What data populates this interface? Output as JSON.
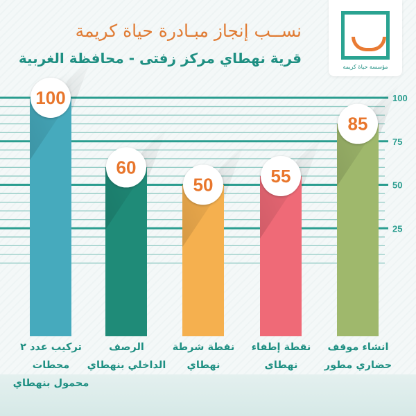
{
  "header": {
    "title": "نســب إنجاز مبـادرة حياة كريمة",
    "subtitle": "قرية نهطاي مركز زفتى - محافظة الغربية",
    "logo_text": "مؤسسة حياة كريمة"
  },
  "chart_data": {
    "type": "bar",
    "title": "نســب إنجاز مبـادرة حياة كريمة",
    "subtitle": "قرية نهطاي مركز زفتى - محافظة الغربية",
    "categories": [
      "تركيب عدد ٢ محطات محمول بنهطاي",
      "الرصف الداخلي بنهطاي",
      "نقطة شرطة نهطاي",
      "نقطة إطفاء نهطاى",
      "انشاء موقف حضاري مطور"
    ],
    "category_lines": [
      [
        "تركيب عدد ٢ محطات",
        "محمول بنهطاي"
      ],
      [
        "الرصف",
        "الداخلي بنهطاي"
      ],
      [
        "نقطة شرطة",
        "نهطاي"
      ],
      [
        "نقطة إطفاء",
        "نهطاى"
      ],
      [
        "انشاء موقف",
        "حضاري مطور"
      ]
    ],
    "values": [
      100,
      60,
      50,
      55,
      85
    ],
    "data_labels": [
      "100",
      "60",
      "50",
      "55",
      "85"
    ],
    "bar_colors": [
      "#46aabd",
      "#1f8b78",
      "#f5b04f",
      "#ef6a77",
      "#9fb86c"
    ],
    "yticks": [
      "25",
      "50",
      "75",
      "100"
    ],
    "ylim": [
      0,
      100
    ],
    "yaxis_side": "right",
    "grid": true,
    "colors": {
      "title": "#e07b33",
      "subtitle": "#1e8f82",
      "grid": "#2a9d8f",
      "data_label": "#e8762c"
    }
  }
}
